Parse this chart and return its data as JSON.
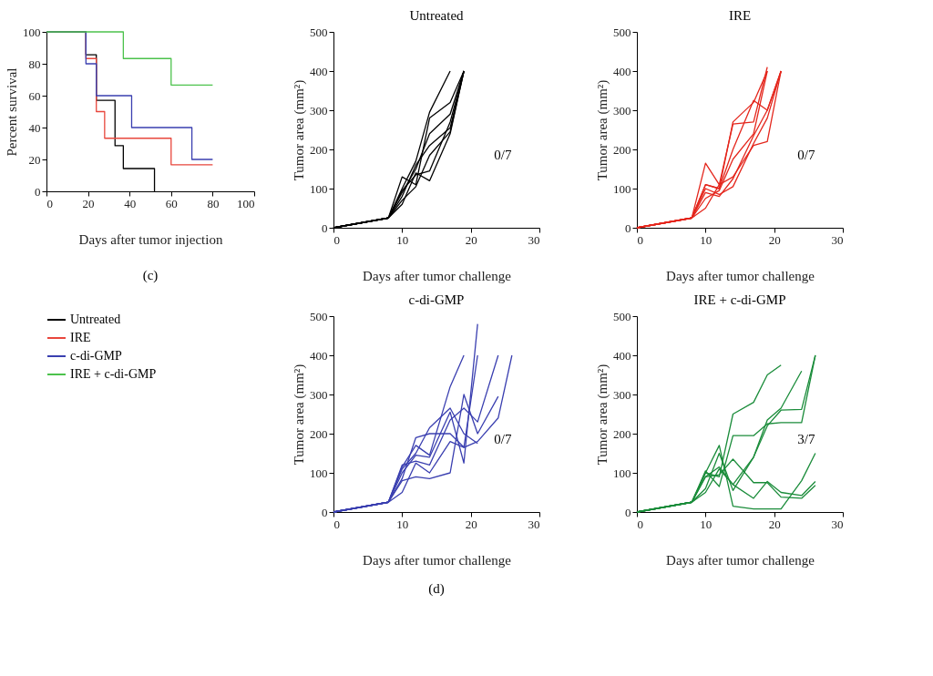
{
  "chart_data": [
    {
      "type": "step",
      "xlabel": "Days after tumor injection",
      "ylabel": "Percent survival",
      "xlim": [
        0,
        100
      ],
      "xticks": [
        0,
        20,
        40,
        60,
        80,
        100
      ],
      "ylim": [
        0,
        100
      ],
      "yticks": [
        0,
        20,
        40,
        60,
        80,
        100
      ],
      "legend": "bottom",
      "annotations": [
        "(c)"
      ],
      "series": [
        {
          "name": "Untreated",
          "color": "#000000",
          "x": [
            0,
            19,
            24,
            33,
            37,
            52
          ],
          "values": [
            100,
            85.7,
            57.1,
            28.6,
            14.3,
            0
          ]
        },
        {
          "name": "IRE",
          "color": "#e8463c",
          "x": [
            0,
            19,
            24,
            28,
            60,
            80
          ],
          "values": [
            100,
            83.3,
            50,
            33.3,
            16.7,
            16.7
          ]
        },
        {
          "name": "c-di-GMP",
          "color": "#3a3fb0",
          "x": [
            0,
            19,
            24,
            41,
            70,
            80
          ],
          "values": [
            100,
            80,
            60,
            40,
            20,
            20
          ]
        },
        {
          "name": "IRE + c-di-GMP",
          "color": "#4cc24c",
          "x": [
            0,
            37,
            60,
            80
          ],
          "values": [
            100,
            83.3,
            66.7,
            66.7
          ]
        }
      ]
    },
    {
      "type": "line",
      "title": "Untreated",
      "xlabel": "Days after tumor challenge",
      "ylabel": "Tumor area (mm²)",
      "xlim": [
        0,
        30
      ],
      "xticks": [
        0,
        10,
        20,
        30
      ],
      "ylim": [
        0,
        500
      ],
      "yticks": [
        0,
        100,
        200,
        300,
        400,
        500
      ],
      "annotations": [
        "0/7"
      ],
      "series": [
        {
          "color": "#000000",
          "x": [
            0,
            8,
            10,
            12,
            14,
            17
          ],
          "values": [
            0,
            25,
            100,
            170,
            295,
            400
          ]
        },
        {
          "color": "#000000",
          "x": [
            0,
            8,
            10,
            12,
            14,
            17,
            19
          ],
          "values": [
            0,
            25,
            130,
            110,
            280,
            320,
            400
          ]
        },
        {
          "color": "#000000",
          "x": [
            0,
            8,
            10,
            12,
            14,
            17,
            19
          ],
          "values": [
            0,
            25,
            90,
            150,
            240,
            290,
            400
          ]
        },
        {
          "color": "#000000",
          "x": [
            0,
            8,
            10,
            12,
            14,
            17,
            19
          ],
          "values": [
            0,
            25,
            80,
            160,
            210,
            255,
            400
          ]
        },
        {
          "color": "#000000",
          "x": [
            0,
            8,
            10,
            12,
            14,
            17,
            19
          ],
          "values": [
            0,
            25,
            70,
            105,
            185,
            245,
            400
          ]
        },
        {
          "color": "#000000",
          "x": [
            0,
            8,
            10,
            12,
            14,
            17,
            19
          ],
          "values": [
            0,
            25,
            95,
            135,
            145,
            270,
            400
          ]
        },
        {
          "color": "#000000",
          "x": [
            0,
            8,
            10,
            12,
            14,
            17,
            19
          ],
          "values": [
            0,
            25,
            60,
            140,
            120,
            240,
            400
          ]
        }
      ]
    },
    {
      "type": "line",
      "title": "IRE",
      "xlabel": "Days after tumor challenge",
      "ylabel": "Tumor area (mm²)",
      "xlim": [
        0,
        30
      ],
      "xticks": [
        0,
        10,
        20,
        30
      ],
      "ylim": [
        0,
        500
      ],
      "yticks": [
        0,
        100,
        200,
        300,
        400,
        500
      ],
      "annotations": [
        "0/7"
      ],
      "series": [
        {
          "color": "#e4261c",
          "x": [
            0,
            8,
            10,
            12,
            14,
            17,
            19
          ],
          "values": [
            0,
            25,
            165,
            110,
            265,
            270,
            410
          ]
        },
        {
          "color": "#e4261c",
          "x": [
            0,
            8,
            10,
            12,
            14,
            17,
            19
          ],
          "values": [
            0,
            25,
            110,
            100,
            270,
            320,
            400
          ]
        },
        {
          "color": "#e4261c",
          "x": [
            0,
            8,
            10,
            12,
            14,
            17,
            19,
            21
          ],
          "values": [
            0,
            25,
            110,
            100,
            200,
            325,
            300,
            400
          ]
        },
        {
          "color": "#e4261c",
          "x": [
            0,
            8,
            10,
            12,
            14,
            17,
            19
          ],
          "values": [
            0,
            25,
            75,
            95,
            175,
            240,
            400
          ]
        },
        {
          "color": "#e4261c",
          "x": [
            0,
            8,
            10,
            12,
            14,
            17,
            19,
            21
          ],
          "values": [
            0,
            25,
            50,
            110,
            130,
            210,
            220,
            400
          ]
        },
        {
          "color": "#e4261c",
          "x": [
            0,
            8,
            10,
            12,
            14,
            17,
            19,
            21
          ],
          "values": [
            0,
            25,
            90,
            80,
            125,
            235,
            300,
            400
          ]
        },
        {
          "color": "#e4261c",
          "x": [
            0,
            8,
            10,
            12,
            14,
            17,
            19,
            21
          ],
          "values": [
            0,
            25,
            100,
            85,
            105,
            215,
            280,
            400
          ]
        }
      ]
    },
    {
      "type": "line",
      "title": "c-di-GMP",
      "xlabel": "Days after tumor challenge",
      "ylabel": "Tumor area (mm²)",
      "xlim": [
        0,
        30
      ],
      "xticks": [
        0,
        10,
        20,
        30
      ],
      "ylim": [
        0,
        500
      ],
      "yticks": [
        0,
        100,
        200,
        300,
        400,
        500
      ],
      "annotations": [
        "0/7",
        "(d)"
      ],
      "series": [
        {
          "color": "#3a3fb0",
          "x": [
            0,
            8,
            10,
            12,
            14,
            17,
            19
          ],
          "values": [
            0,
            25,
            115,
            170,
            145,
            320,
            400
          ]
        },
        {
          "color": "#3a3fb0",
          "x": [
            0,
            8,
            10,
            12,
            14,
            17,
            19,
            21
          ],
          "values": [
            0,
            25,
            100,
            145,
            140,
            255,
            125,
            480
          ]
        },
        {
          "color": "#3a3fb0",
          "x": [
            0,
            8,
            10,
            12,
            14,
            17,
            19,
            21
          ],
          "values": [
            0,
            25,
            85,
            190,
            200,
            200,
            165,
            400
          ]
        },
        {
          "color": "#3a3fb0",
          "x": [
            0,
            8,
            10,
            12,
            14,
            17,
            19,
            21,
            24
          ],
          "values": [
            0,
            25,
            120,
            130,
            120,
            235,
            265,
            230,
            400
          ]
        },
        {
          "color": "#3a3fb0",
          "x": [
            0,
            8,
            10,
            12,
            14,
            17,
            19,
            21,
            24
          ],
          "values": [
            0,
            25,
            80,
            90,
            85,
            100,
            300,
            200,
            295
          ]
        },
        {
          "color": "#3a3fb0",
          "x": [
            0,
            8,
            10,
            12,
            14,
            17,
            19,
            21,
            24,
            26
          ],
          "values": [
            0,
            25,
            50,
            125,
            100,
            180,
            165,
            180,
            240,
            400
          ]
        },
        {
          "color": "#3a3fb0",
          "x": [
            0,
            8,
            10,
            12,
            14,
            17,
            19,
            21
          ],
          "values": [
            0,
            25,
            110,
            150,
            215,
            265,
            200,
            175
          ]
        }
      ]
    },
    {
      "type": "line",
      "title": "IRE + c-di-GMP",
      "xlabel": "Days after tumor challenge",
      "ylabel": "Tumor area (mm²)",
      "xlim": [
        0,
        30
      ],
      "xticks": [
        0,
        10,
        20,
        30
      ],
      "ylim": [
        0,
        500
      ],
      "yticks": [
        0,
        100,
        200,
        300,
        400,
        500
      ],
      "annotations": [
        "3/7"
      ],
      "series": [
        {
          "color": "#1a8c3a",
          "x": [
            0,
            8,
            10,
            12,
            14,
            17,
            19,
            21
          ],
          "values": [
            0,
            25,
            100,
            90,
            250,
            280,
            350,
            375
          ]
        },
        {
          "color": "#1a8c3a",
          "x": [
            0,
            8,
            10,
            12,
            14,
            17,
            19,
            21,
            24
          ],
          "values": [
            0,
            25,
            60,
            150,
            55,
            140,
            235,
            265,
            360
          ]
        },
        {
          "color": "#1a8c3a",
          "x": [
            0,
            8,
            10,
            12,
            14,
            17,
            19,
            21,
            24,
            26
          ],
          "values": [
            0,
            25,
            105,
            65,
            195,
            195,
            225,
            228,
            228,
            400
          ]
        },
        {
          "color": "#1a8c3a",
          "x": [
            0,
            8,
            10,
            12,
            14,
            17,
            19,
            21,
            24,
            26
          ],
          "values": [
            0,
            25,
            90,
            115,
            70,
            140,
            220,
            260,
            262,
            400
          ]
        },
        {
          "color": "#1a8c3a",
          "x": [
            0,
            8,
            10,
            12,
            14,
            17,
            19,
            21,
            24,
            26
          ],
          "values": [
            0,
            25,
            100,
            170,
            15,
            8,
            8,
            8,
            80,
            150
          ]
        },
        {
          "color": "#1a8c3a",
          "x": [
            0,
            8,
            10,
            12,
            14,
            17,
            19,
            21,
            24,
            26
          ],
          "values": [
            0,
            25,
            50,
            110,
            70,
            35,
            78,
            50,
            42,
            78
          ]
        },
        {
          "color": "#1a8c3a",
          "x": [
            0,
            8,
            10,
            12,
            14,
            17,
            19,
            21,
            24,
            26
          ],
          "values": [
            0,
            25,
            90,
            95,
            135,
            75,
            75,
            38,
            35,
            68
          ]
        }
      ]
    }
  ]
}
